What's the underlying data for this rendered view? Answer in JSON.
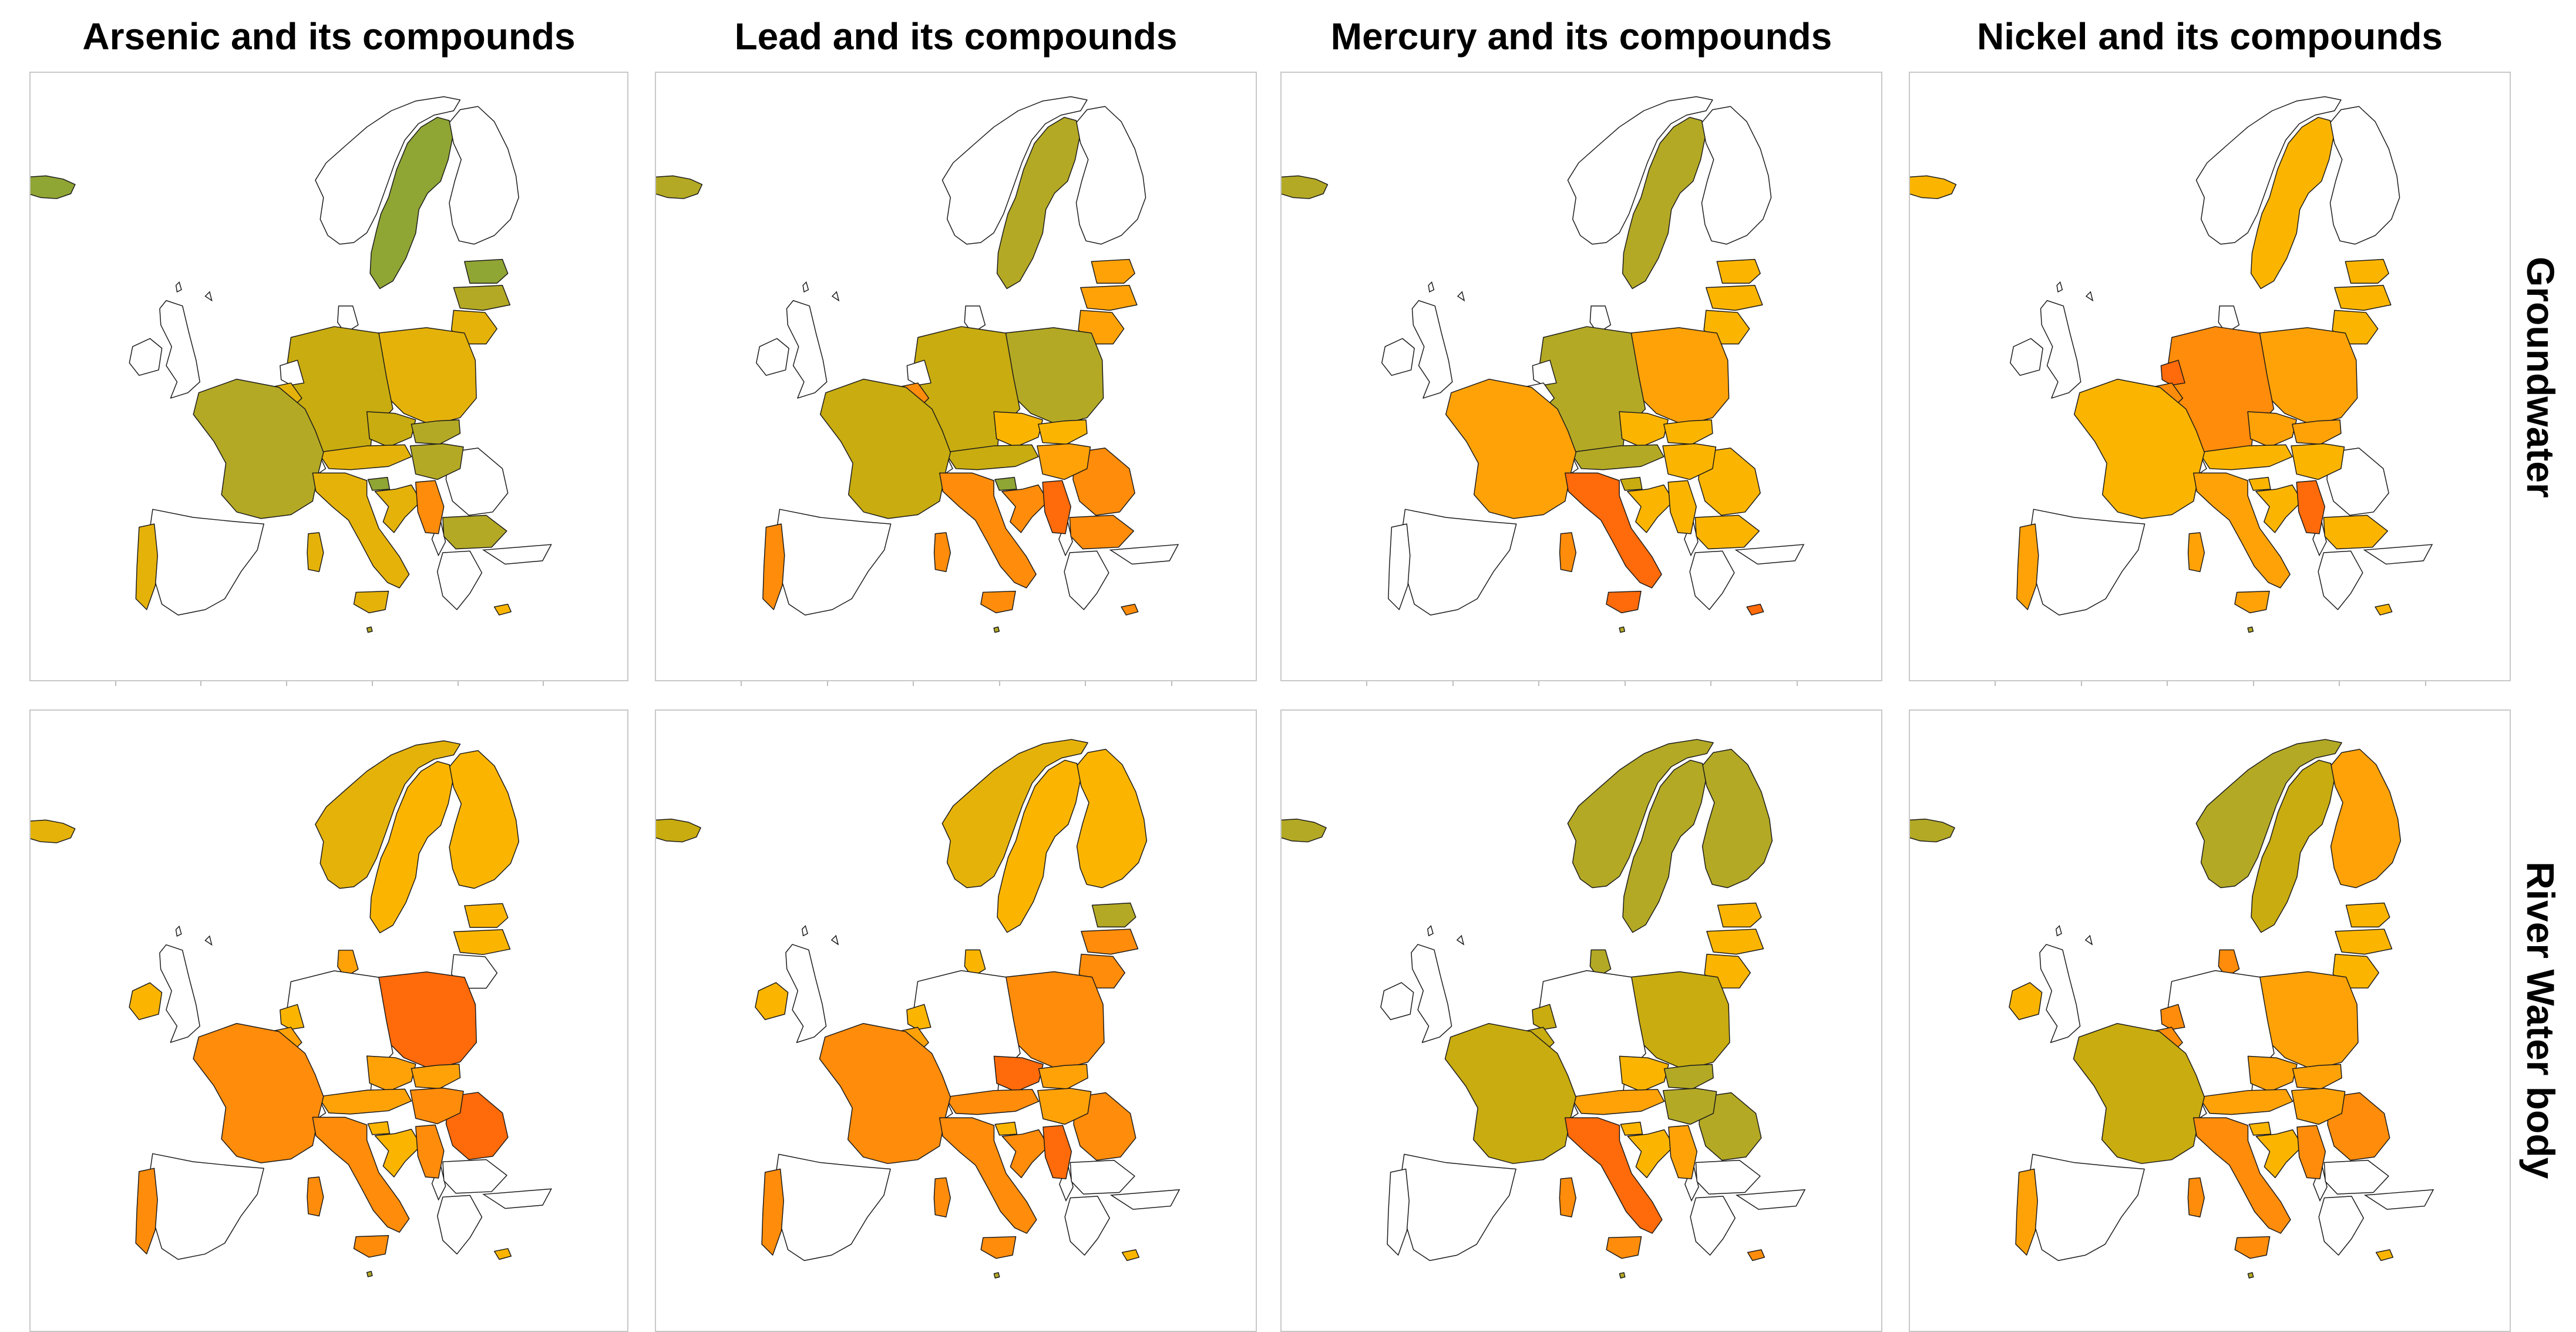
{
  "figure": {
    "columns": [
      {
        "title": "Arsenic and its compounds"
      },
      {
        "title": "Lead and its compounds"
      },
      {
        "title": "Mercury and its compounds"
      },
      {
        "title": "Nickel and its compounds"
      }
    ],
    "rows": [
      {
        "title": "Groundwater"
      },
      {
        "title": "River Water body"
      }
    ]
  },
  "palette": {
    "olive_green": "#8fa534",
    "olive": "#b3a925",
    "mustard": "#c8ac10",
    "gold": "#e5b20a",
    "amber": "#fbb500",
    "orange_light": "#ffa208",
    "orange": "#ff8c0a",
    "orange_dark": "#ff6a0a",
    "nodata": "#ffffff",
    "outline": "#1a1a1a"
  },
  "maps": [
    {
      "pollutant": "Arsenic and its compounds",
      "medium": "Groundwater",
      "fill": {
        "iceland": "olive_green",
        "norway": "nodata",
        "sweden": "olive_green",
        "finland": "nodata",
        "estonia": "olive_green",
        "latvia": "olive",
        "lithuania": "gold",
        "poland": "gold",
        "germany": "mustard",
        "czechia": "mustard",
        "slovakia": "olive",
        "austria": "gold",
        "hungary": "olive",
        "slovenia": "olive_green",
        "croatia": "gold",
        "serbia": "orange",
        "romania": "nodata",
        "bulgaria": "olive",
        "greece": "nodata",
        "italy": "gold",
        "sardinia": "gold",
        "sicily": "gold",
        "france": "olive",
        "belgium": "gold",
        "netherlands": "nodata",
        "luxembourg": "olive",
        "switzerland": "nodata",
        "spain": "nodata",
        "portugal": "gold",
        "ireland": "nodata",
        "uk": "nodata",
        "denmark": "nodata",
        "cyprus": "amber",
        "malta": "olive"
      }
    },
    {
      "pollutant": "Lead and its compounds",
      "medium": "Groundwater",
      "fill": {
        "iceland": "olive",
        "norway": "nodata",
        "sweden": "olive",
        "finland": "nodata",
        "estonia": "orange_light",
        "latvia": "orange_light",
        "lithuania": "orange_light",
        "poland": "olive",
        "germany": "mustard",
        "czechia": "amber",
        "slovakia": "amber",
        "austria": "mustard",
        "hungary": "orange_light",
        "slovenia": "olive_green",
        "croatia": "orange",
        "serbia": "orange_dark",
        "romania": "orange",
        "bulgaria": "orange",
        "greece": "nodata",
        "italy": "orange",
        "sardinia": "orange",
        "sicily": "orange",
        "france": "mustard",
        "belgium": "orange",
        "netherlands": "nodata",
        "luxembourg": "mustard",
        "switzerland": "nodata",
        "spain": "nodata",
        "portugal": "orange",
        "ireland": "nodata",
        "uk": "nodata",
        "denmark": "nodata",
        "cyprus": "orange",
        "malta": "olive"
      }
    },
    {
      "pollutant": "Mercury and its compounds",
      "medium": "Groundwater",
      "fill": {
        "iceland": "olive",
        "norway": "nodata",
        "sweden": "olive",
        "finland": "nodata",
        "estonia": "amber",
        "latvia": "amber",
        "lithuania": "amber",
        "poland": "orange_light",
        "germany": "olive",
        "czechia": "amber",
        "slovakia": "amber",
        "austria": "olive",
        "hungary": "amber",
        "slovenia": "mustard",
        "croatia": "amber",
        "serbia": "amber",
        "romania": "amber",
        "bulgaria": "amber",
        "greece": "nodata",
        "italy": "orange_dark",
        "sardinia": "orange",
        "sicily": "orange_dark",
        "france": "orange_light",
        "belgium": "nodata",
        "netherlands": "nodata",
        "luxembourg": "olive",
        "switzerland": "nodata",
        "spain": "nodata",
        "portugal": "nodata",
        "ireland": "nodata",
        "uk": "nodata",
        "denmark": "nodata",
        "cyprus": "orange_dark",
        "malta": "olive"
      }
    },
    {
      "pollutant": "Nickel and its compounds",
      "medium": "Groundwater",
      "fill": {
        "iceland": "amber",
        "norway": "nodata",
        "sweden": "amber",
        "finland": "nodata",
        "estonia": "amber",
        "latvia": "amber",
        "lithuania": "amber",
        "poland": "orange_light",
        "germany": "orange",
        "czechia": "orange_light",
        "slovakia": "orange_light",
        "austria": "amber",
        "hungary": "amber",
        "slovenia": "amber",
        "croatia": "amber",
        "serbia": "orange_dark",
        "romania": "nodata",
        "bulgaria": "amber",
        "greece": "nodata",
        "italy": "orange_light",
        "sardinia": "orange_light",
        "sicily": "orange_light",
        "france": "amber",
        "belgium": "orange",
        "netherlands": "orange_dark",
        "luxembourg": "amber",
        "switzerland": "nodata",
        "spain": "nodata",
        "portugal": "orange_light",
        "ireland": "nodata",
        "uk": "nodata",
        "denmark": "nodata",
        "cyprus": "amber",
        "malta": "olive"
      }
    },
    {
      "pollutant": "Arsenic and its compounds",
      "medium": "River Water body",
      "fill": {
        "iceland": "gold",
        "norway": "gold",
        "sweden": "amber",
        "finland": "amber",
        "estonia": "amber",
        "latvia": "amber",
        "lithuania": "nodata",
        "poland": "orange_dark",
        "germany": "nodata",
        "czechia": "orange_light",
        "slovakia": "orange_light",
        "austria": "orange_light",
        "hungary": "orange",
        "slovenia": "amber",
        "croatia": "amber",
        "serbia": "orange",
        "romania": "orange_dark",
        "bulgaria": "nodata",
        "greece": "nodata",
        "italy": "orange",
        "sardinia": "orange",
        "sicily": "orange",
        "france": "orange",
        "belgium": "orange_light",
        "netherlands": "amber",
        "luxembourg": "orange",
        "switzerland": "nodata",
        "spain": "nodata",
        "portugal": "orange",
        "ireland": "amber",
        "uk": "nodata",
        "denmark": "orange_light",
        "cyprus": "amber",
        "malta": "olive"
      }
    },
    {
      "pollutant": "Lead and its compounds",
      "medium": "River Water body",
      "fill": {
        "iceland": "mustard",
        "norway": "gold",
        "sweden": "amber",
        "finland": "amber",
        "estonia": "olive",
        "latvia": "orange",
        "lithuania": "orange",
        "poland": "orange",
        "germany": "nodata",
        "czechia": "orange_dark",
        "slovakia": "orange_light",
        "austria": "orange",
        "hungary": "orange_light",
        "slovenia": "amber",
        "croatia": "orange",
        "serbia": "orange_dark",
        "romania": "orange",
        "bulgaria": "nodata",
        "greece": "nodata",
        "italy": "orange",
        "sardinia": "orange",
        "sicily": "orange",
        "france": "orange",
        "belgium": "orange_light",
        "netherlands": "amber",
        "luxembourg": "orange",
        "switzerland": "nodata",
        "spain": "nodata",
        "portugal": "orange",
        "ireland": "amber",
        "uk": "nodata",
        "denmark": "amber",
        "cyprus": "amber",
        "malta": "olive"
      }
    },
    {
      "pollutant": "Mercury and its compounds",
      "medium": "River Water body",
      "fill": {
        "iceland": "olive",
        "norway": "olive",
        "sweden": "olive",
        "finland": "olive",
        "estonia": "amber",
        "latvia": "amber",
        "lithuania": "amber",
        "poland": "mustard",
        "germany": "nodata",
        "czechia": "amber",
        "slovakia": "olive",
        "austria": "orange_light",
        "hungary": "olive",
        "slovenia": "amber",
        "croatia": "amber",
        "serbia": "orange_light",
        "romania": "olive",
        "bulgaria": "nodata",
        "greece": "nodata",
        "italy": "orange_dark",
        "sardinia": "orange",
        "sicily": "orange",
        "france": "mustard",
        "belgium": "mustard",
        "netherlands": "mustard",
        "luxembourg": "mustard",
        "switzerland": "nodata",
        "spain": "nodata",
        "portugal": "nodata",
        "ireland": "nodata",
        "uk": "nodata",
        "denmark": "olive",
        "cyprus": "orange",
        "malta": "olive"
      }
    },
    {
      "pollutant": "Nickel and its compounds",
      "medium": "River Water body",
      "fill": {
        "iceland": "olive",
        "norway": "olive",
        "sweden": "mustard",
        "finland": "orange_light",
        "estonia": "amber",
        "latvia": "amber",
        "lithuania": "amber",
        "poland": "orange_light",
        "germany": "nodata",
        "czechia": "orange_light",
        "slovakia": "orange_light",
        "austria": "orange_light",
        "hungary": "orange_light",
        "slovenia": "amber",
        "croatia": "amber",
        "serbia": "orange",
        "romania": "orange",
        "bulgaria": "nodata",
        "greece": "nodata",
        "italy": "orange",
        "sardinia": "orange",
        "sicily": "orange",
        "france": "mustard",
        "belgium": "orange",
        "netherlands": "orange",
        "luxembourg": "mustard",
        "switzerland": "nodata",
        "spain": "nodata",
        "portugal": "orange_light",
        "ireland": "amber",
        "uk": "nodata",
        "denmark": "orange",
        "cyprus": "amber",
        "malta": "olive"
      }
    }
  ]
}
